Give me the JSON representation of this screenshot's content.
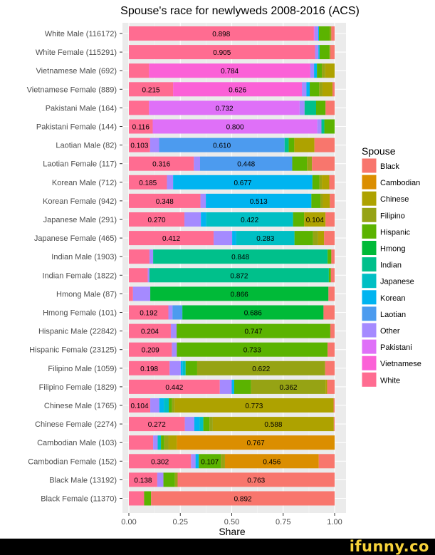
{
  "brand": "ifunny.co",
  "chart_data": {
    "type": "bar",
    "orientation": "horizontal",
    "stacked": true,
    "title": "Spouse's race for newlyweds 2008-2016 (ACS)",
    "xlabel": "Share",
    "ylabel": "",
    "xlim": [
      0,
      1
    ],
    "xticks": [
      "0.00",
      "0.25",
      "0.50",
      "0.75",
      "1.00"
    ],
    "grid": true,
    "legend_title": "Spouse",
    "legend_position": "right",
    "segment_order": [
      "White",
      "Pakistani",
      "Vietnamese",
      "Other",
      "Laotian",
      "Korean",
      "Japanese",
      "Indian",
      "Hmong",
      "Hispanic",
      "Filipino",
      "Chinese",
      "Cambodian",
      "Black"
    ],
    "legend": [
      {
        "name": "Black",
        "color": "#F8766D"
      },
      {
        "name": "Cambodian",
        "color": "#DB8E00"
      },
      {
        "name": "Chinese",
        "color": "#AEA200"
      },
      {
        "name": "Filipino",
        "color": "#96A314"
      },
      {
        "name": "Hispanic",
        "color": "#5BB300"
      },
      {
        "name": "Hmong",
        "color": "#00BA38"
      },
      {
        "name": "Indian",
        "color": "#00C08B"
      },
      {
        "name": "Japanese",
        "color": "#00BFC4"
      },
      {
        "name": "Korean",
        "color": "#00B4F0"
      },
      {
        "name": "Laotian",
        "color": "#4C9BEF"
      },
      {
        "name": "Other",
        "color": "#A58AFF"
      },
      {
        "name": "Pakistani",
        "color": "#DF70F8"
      },
      {
        "name": "Vietnamese",
        "color": "#FB61D7"
      },
      {
        "name": "White",
        "color": "#FF6C91"
      }
    ],
    "categories": [
      "White Male (116172)",
      "White Female (115291)",
      "Vietnamese Male (692)",
      "Vietnamese Female (889)",
      "Pakistani Male (164)",
      "Pakistani Female (144)",
      "Laotian Male (82)",
      "Laotian Female (117)",
      "Korean Male (712)",
      "Korean Female (942)",
      "Japanese Male (291)",
      "Japanese Female (465)",
      "Indian Male (1903)",
      "Indian Female (1822)",
      "Hmong Male (87)",
      "Hmong Female (101)",
      "Hispanic Male (22842)",
      "Hispanic Female (23125)",
      "Filipino Male (1059)",
      "Filipino Female (1829)",
      "Chinese Male (1765)",
      "Chinese Female (2274)",
      "Cambodian Male (103)",
      "Cambodian Female (152)",
      "Black Male (13192)",
      "Black Female (11370)"
    ],
    "bars": [
      {
        "segments": {
          "White": 0.898,
          "Vietnamese": 0.004,
          "Other": 0.018,
          "Korean": 0.004,
          "Hispanic": 0.052,
          "Filipino": 0.008,
          "Black": 0.016
        },
        "labels": [
          {
            "series": "White",
            "text": "0.898"
          }
        ]
      },
      {
        "segments": {
          "White": 0.905,
          "Other": 0.016,
          "Korean": 0.006,
          "Hispanic": 0.048,
          "Filipino": 0.004,
          "Black": 0.021
        },
        "labels": [
          {
            "series": "White",
            "text": "0.905"
          }
        ]
      },
      {
        "segments": {
          "White": 0.098,
          "Vietnamese": 0.784,
          "Other": 0.018,
          "Korean": 0.014,
          "Hispanic": 0.024,
          "Filipino": 0.016,
          "Chinese": 0.046
        },
        "labels": [
          {
            "series": "Vietnamese",
            "text": "0.784"
          }
        ]
      },
      {
        "segments": {
          "White": 0.215,
          "Vietnamese": 0.626,
          "Other": 0.022,
          "Korean": 0.016,
          "Hispanic": 0.046,
          "Filipino": 0.016,
          "Chinese": 0.049,
          "Black": 0.01
        },
        "labels": [
          {
            "series": "White",
            "text": "0.215"
          },
          {
            "series": "Vietnamese",
            "text": "0.626"
          }
        ]
      },
      {
        "segments": {
          "White": 0.098,
          "Pakistani": 0.732,
          "Other": 0.024,
          "Indian": 0.056,
          "Hispanic": 0.046,
          "Black": 0.044
        },
        "labels": [
          {
            "series": "Pakistani",
            "text": "0.732"
          }
        ]
      },
      {
        "segments": {
          "White": 0.116,
          "Pakistani": 0.8,
          "Other": 0.02,
          "Indian": 0.014,
          "Hispanic": 0.05
        },
        "labels": [
          {
            "series": "White",
            "text": "0.116"
          },
          {
            "series": "Pakistani",
            "text": "0.800"
          }
        ]
      },
      {
        "segments": {
          "White": 0.103,
          "Other": 0.044,
          "Laotian": 0.61,
          "Indian": 0.02,
          "Hispanic": 0.027,
          "Chinese": 0.098,
          "Black": 0.098
        },
        "labels": [
          {
            "series": "White",
            "text": "0.103"
          },
          {
            "series": "Laotian",
            "text": "0.610"
          }
        ]
      },
      {
        "segments": {
          "White": 0.316,
          "Other": 0.03,
          "Laotian": 0.448,
          "Hispanic": 0.072,
          "Filipino": 0.024,
          "Black": 0.11
        },
        "labels": [
          {
            "series": "White",
            "text": "0.316"
          },
          {
            "series": "Laotian",
            "text": "0.448"
          }
        ]
      },
      {
        "segments": {
          "White": 0.185,
          "Other": 0.03,
          "Korean": 0.677,
          "Hispanic": 0.034,
          "Filipino": 0.012,
          "Chinese": 0.036,
          "Black": 0.026
        },
        "labels": [
          {
            "series": "White",
            "text": "0.185"
          },
          {
            "series": "Korean",
            "text": "0.677"
          }
        ]
      },
      {
        "segments": {
          "White": 0.348,
          "Other": 0.026,
          "Korean": 0.513,
          "Hispanic": 0.044,
          "Filipino": 0.012,
          "Chinese": 0.034,
          "Black": 0.023
        },
        "labels": [
          {
            "series": "White",
            "text": "0.348"
          },
          {
            "series": "Korean",
            "text": "0.513"
          }
        ]
      },
      {
        "segments": {
          "White": 0.27,
          "Other": 0.08,
          "Korean": 0.026,
          "Japanese": 0.422,
          "Hispanic": 0.054,
          "Chinese": 0.104,
          "Black": 0.044
        },
        "labels": [
          {
            "series": "White",
            "text": "0.270"
          },
          {
            "series": "Japanese",
            "text": "0.422"
          },
          {
            "series": "Chinese",
            "text": "0.104"
          }
        ]
      },
      {
        "segments": {
          "White": 0.412,
          "Other": 0.09,
          "Korean": 0.02,
          "Japanese": 0.283,
          "Hispanic": 0.09,
          "Filipino": 0.024,
          "Chinese": 0.03,
          "Black": 0.051
        },
        "labels": [
          {
            "series": "White",
            "text": "0.412"
          },
          {
            "series": "Japanese",
            "text": "0.283"
          }
        ]
      },
      {
        "segments": {
          "White": 0.1,
          "Other": 0.018,
          "Indian": 0.848,
          "Hispanic": 0.018,
          "Black": 0.016
        },
        "labels": [
          {
            "series": "Indian",
            "text": "0.848"
          }
        ]
      },
      {
        "segments": {
          "White": 0.092,
          "Other": 0.008,
          "Indian": 0.872,
          "Hispanic": 0.01,
          "Black": 0.018
        },
        "labels": [
          {
            "series": "Indian",
            "text": "0.872"
          }
        ]
      },
      {
        "segments": {
          "White": 0.02,
          "Other": 0.084,
          "Hmong": 0.866,
          "Black": 0.03
        },
        "labels": [
          {
            "series": "Hmong",
            "text": "0.866"
          }
        ]
      },
      {
        "segments": {
          "White": 0.192,
          "Other": 0.02,
          "Laotian": 0.048,
          "Hmong": 0.686,
          "Black": 0.054
        },
        "labels": [
          {
            "series": "White",
            "text": "0.192"
          },
          {
            "series": "Hmong",
            "text": "0.686"
          }
        ]
      },
      {
        "segments": {
          "White": 0.204,
          "Other": 0.028,
          "Hispanic": 0.747,
          "Black": 0.021
        },
        "labels": [
          {
            "series": "White",
            "text": "0.204"
          },
          {
            "series": "Hispanic",
            "text": "0.747"
          }
        ]
      },
      {
        "segments": {
          "White": 0.209,
          "Other": 0.024,
          "Hispanic": 0.733,
          "Black": 0.034
        },
        "labels": [
          {
            "series": "White",
            "text": "0.209"
          },
          {
            "series": "Hispanic",
            "text": "0.733"
          }
        ]
      },
      {
        "segments": {
          "White": 0.198,
          "Other": 0.054,
          "Japanese": 0.014,
          "Korean": 0.01,
          "Hispanic": 0.056,
          "Filipino": 0.622,
          "Black": 0.046
        },
        "labels": [
          {
            "series": "White",
            "text": "0.198"
          },
          {
            "series": "Filipino",
            "text": "0.622"
          }
        ]
      },
      {
        "segments": {
          "White": 0.442,
          "Other": 0.058,
          "Korean": 0.012,
          "Hispanic": 0.082,
          "Filipino": 0.362,
          "Chinese": 0.008,
          "Black": 0.036
        },
        "labels": [
          {
            "series": "White",
            "text": "0.442"
          },
          {
            "series": "Filipino",
            "text": "0.362"
          }
        ]
      },
      {
        "segments": {
          "White": 0.104,
          "Other": 0.044,
          "Japanese": 0.024,
          "Korean": 0.022,
          "Hispanic": 0.016,
          "Filipino": 0.012,
          "Chinese": 0.773,
          "Black": 0.005
        },
        "labels": [
          {
            "series": "White",
            "text": "0.104"
          },
          {
            "series": "Chinese",
            "text": "0.773"
          }
        ]
      },
      {
        "segments": {
          "White": 0.272,
          "Other": 0.046,
          "Korean": 0.026,
          "Japanese": 0.018,
          "Hispanic": 0.03,
          "Filipino": 0.016,
          "Chinese": 0.588,
          "Black": 0.004
        },
        "labels": [
          {
            "series": "White",
            "text": "0.272"
          },
          {
            "series": "Chinese",
            "text": "0.588"
          }
        ]
      },
      {
        "segments": {
          "White": 0.118,
          "Other": 0.022,
          "Japanese": 0.016,
          "Hispanic": 0.016,
          "Filipino": 0.02,
          "Chinese": 0.041,
          "Cambodian": 0.767
        },
        "labels": [
          {
            "series": "Cambodian",
            "text": "0.767"
          }
        ]
      },
      {
        "segments": {
          "White": 0.302,
          "Other": 0.022,
          "Korean": 0.016,
          "Hispanic": 0.107,
          "Filipino": 0.02,
          "Cambodian": 0.456,
          "Black": 0.077
        },
        "labels": [
          {
            "series": "White",
            "text": "0.302"
          },
          {
            "series": "Hispanic",
            "text": "0.107"
          },
          {
            "series": "Cambodian",
            "text": "0.456"
          }
        ]
      },
      {
        "segments": {
          "White": 0.138,
          "Other": 0.03,
          "Hispanic": 0.056,
          "Filipino": 0.013,
          "Black": 0.763
        },
        "labels": [
          {
            "series": "White",
            "text": "0.138"
          },
          {
            "series": "Black",
            "text": "0.763"
          }
        ]
      },
      {
        "segments": {
          "White": 0.074,
          "Hispanic": 0.034,
          "Black": 0.892
        },
        "labels": [
          {
            "series": "Black",
            "text": "0.892"
          }
        ]
      }
    ]
  }
}
